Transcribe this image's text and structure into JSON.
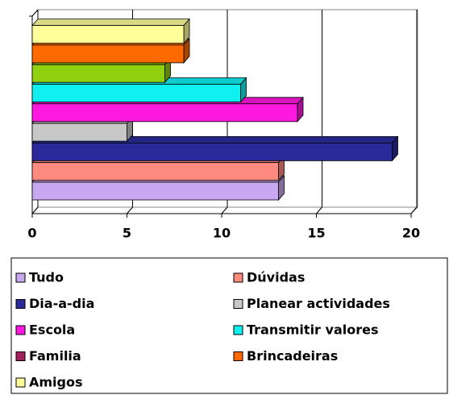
{
  "chart_data": {
    "type": "bar",
    "orientation": "horizontal",
    "grid": true,
    "xlim": [
      0,
      20
    ],
    "xticks": [
      0,
      5,
      10,
      15,
      20
    ],
    "series": [
      {
        "name": "Tudo",
        "color": "#c8a8f0",
        "values": [
          13
        ]
      },
      {
        "name": "Dúvidas",
        "color": "#ff8a80",
        "values": [
          13
        ]
      },
      {
        "name": "Dia-a-dia",
        "color": "#2a2a9a",
        "values": [
          19
        ]
      },
      {
        "name": "Planear actividades",
        "color": "#c8c8c8",
        "values": [
          5
        ]
      },
      {
        "name": "Escola",
        "color": "#ff18e0",
        "values": [
          14
        ]
      },
      {
        "name": "Transmitir valores",
        "color": "#10f0f0",
        "values": [
          11
        ]
      },
      {
        "name": "Familia",
        "color": "#90d010",
        "legend_color": "#a02060",
        "values": [
          7
        ]
      },
      {
        "name": "Brincadeiras",
        "color": "#ff6a00",
        "values": [
          8
        ]
      },
      {
        "name": "Amigos",
        "color": "#ffff9a",
        "values": [
          8
        ]
      }
    ]
  }
}
